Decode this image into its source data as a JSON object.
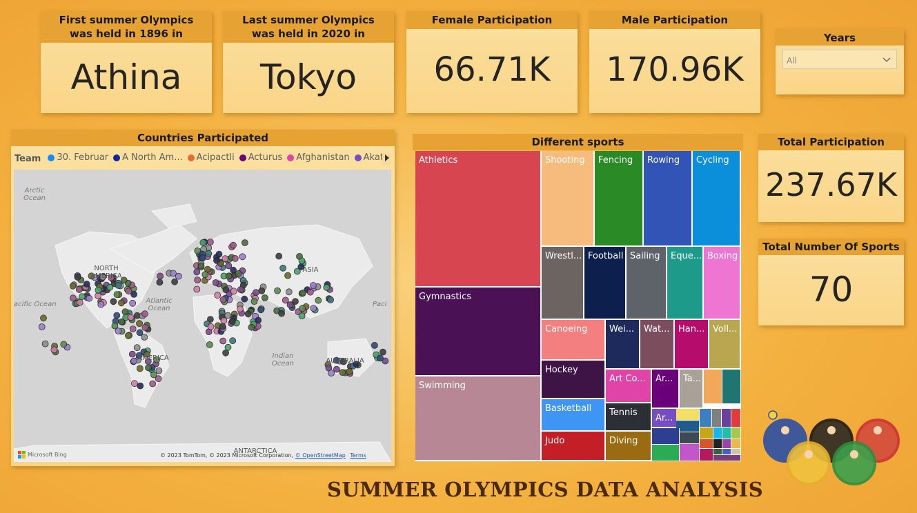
{
  "cards": {
    "first_olympics": {
      "title": "First summer Olympics was held in 1896 in",
      "value": "Athina"
    },
    "last_olympics": {
      "title": "Last summer Olympics was held in 2020 in",
      "value": "Tokyo"
    },
    "female": {
      "title": "Female Participation",
      "value": "66.71K"
    },
    "male": {
      "title": "Male Participation",
      "value": "170.96K"
    },
    "total": {
      "title": "Total Participation",
      "value": "237.67K"
    },
    "sports": {
      "title": "Total Number Of Sports",
      "value": "70"
    }
  },
  "slicer": {
    "title": "Years",
    "selected": "All"
  },
  "map": {
    "title": "Countries Participated",
    "legend_label": "Team",
    "legend_items": [
      {
        "label": "30. Februar",
        "color": "#118dff"
      },
      {
        "label": "A North Am...",
        "color": "#12239e"
      },
      {
        "label": "Acipactli",
        "color": "#e66c37"
      },
      {
        "label": "Acturus",
        "color": "#6b007b"
      },
      {
        "label": "Afghanistan",
        "color": "#e044a7"
      },
      {
        "label": "Akatonbo",
        "color": "#744ec2"
      }
    ],
    "labels": {
      "arctic": "Arctic Ocean",
      "north_america": "NORTH AMERICA",
      "pacific_w": "acific Ocean",
      "atlantic": "Atlantic Ocean",
      "asia": "ASIA",
      "america_s": "AMERICA",
      "indian": "Indian Ocean",
      "australia": "AUSTRALIA",
      "pacific_e": "Paci",
      "antarctica": "ANTARCTICA",
      "bing": "Microsoft Bing",
      "copyright": "© 2023 TomTom, © 2023 Microsoft Corporation,",
      "osm": "© OpenStreetMap",
      "terms": "Terms"
    }
  },
  "treemap": {
    "title": "Different sports",
    "cells": [
      {
        "label": "Athletics",
        "color": "#d64550"
      },
      {
        "label": "Gymnastics",
        "color": "#4a1155"
      },
      {
        "label": "Swimming",
        "color": "#b88795"
      },
      {
        "label": "Shooting",
        "color": "#f5bc7e"
      },
      {
        "label": "Fencing",
        "color": "#2a8a25"
      },
      {
        "label": "Rowing",
        "color": "#3354b7"
      },
      {
        "label": "Cycling",
        "color": "#0c8fdb"
      },
      {
        "label": "Wrestl...",
        "color": "#6b6460"
      },
      {
        "label": "Football",
        "color": "#0d1f4d"
      },
      {
        "label": "Sailing",
        "color": "#5e6369"
      },
      {
        "label": "Eque...",
        "color": "#1e9a8a"
      },
      {
        "label": "Boxing",
        "color": "#ef75d2"
      },
      {
        "label": "Canoeing",
        "color": "#f47f7f"
      },
      {
        "label": "Wei...",
        "color": "#1d2a5b"
      },
      {
        "label": "Wat...",
        "color": "#7b4d5d"
      },
      {
        "label": "Han...",
        "color": "#b60d6d"
      },
      {
        "label": "Voll...",
        "color": "#b9a74f"
      },
      {
        "label": "Hockey",
        "color": "#3e1447"
      },
      {
        "label": "Art Co...",
        "color": "#e044a7"
      },
      {
        "label": "Ar...",
        "color": "#6b007b"
      },
      {
        "label": "Ta...",
        "color": "#a8a198"
      },
      {
        "label": "Basketball",
        "color": "#3e95f3"
      },
      {
        "label": "Tennis",
        "color": "#2c2f36"
      },
      {
        "label": "Ar...",
        "color": "#744ec2"
      },
      {
        "label": "Judo",
        "color": "#c41e27"
      },
      {
        "label": "Diving",
        "color": "#9b6b11"
      }
    ]
  },
  "footer": {
    "title": "SUMMER OLYMPICS DATA ANALYSIS"
  }
}
